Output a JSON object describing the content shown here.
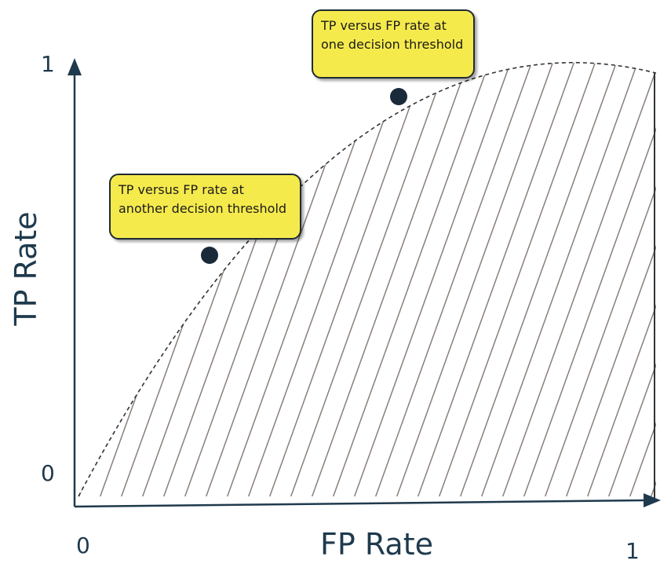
{
  "axes": {
    "x_label": "FP Rate",
    "y_label": "TP Rate",
    "x_min_tick": "0",
    "x_max_tick": "1",
    "y_min_tick": "0",
    "y_max_tick": "1"
  },
  "callouts": [
    {
      "line1": "TP versus FP rate at",
      "line2": "one decision threshold"
    },
    {
      "line1": "TP versus FP rate at",
      "line2": "another decision threshold"
    }
  ],
  "colors": {
    "axis": "#1f3a4d",
    "curve": "#333333",
    "hatch": "#8a7f79",
    "point": "#1a2a3a",
    "callout_fill": "#f5ea4c"
  }
}
